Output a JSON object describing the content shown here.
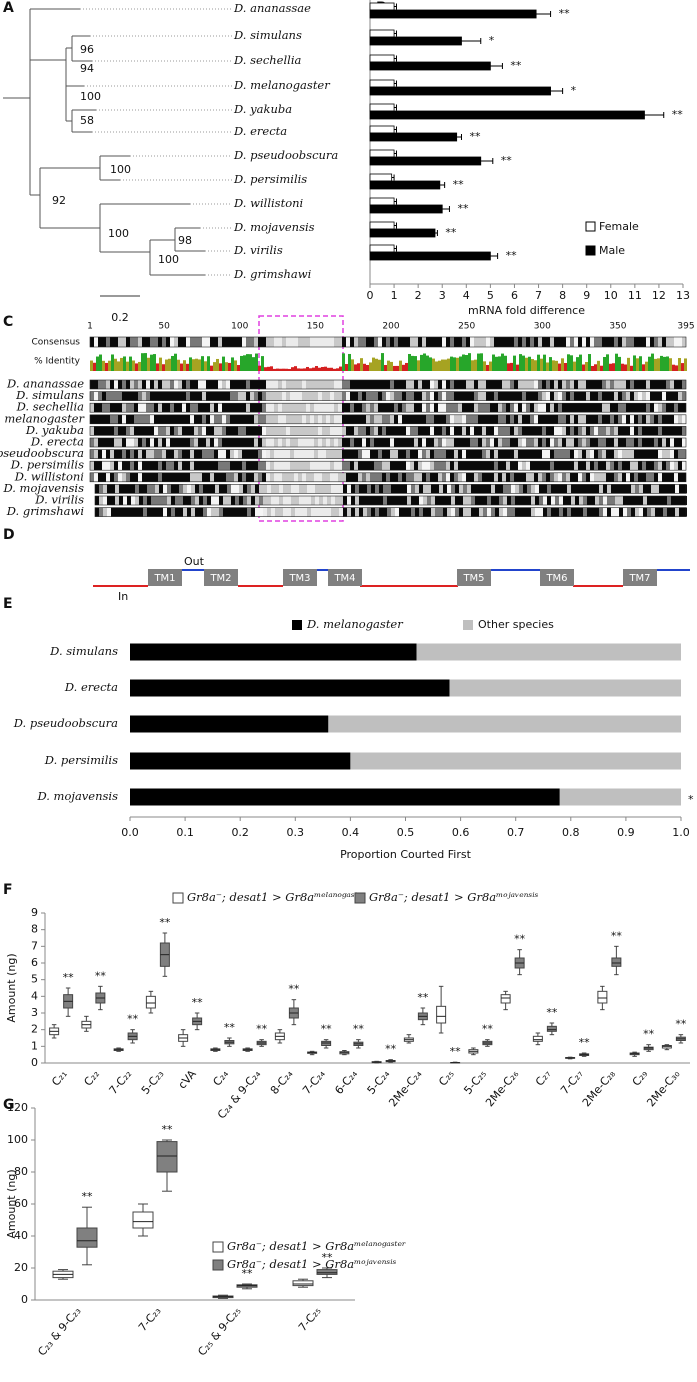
{
  "tree": {
    "panel": "A",
    "species": [
      "D. ananassae",
      "D. simulans",
      "D. sechellia",
      "D. melanogaster",
      "D. yakuba",
      "D. erecta",
      "D. pseudoobscura",
      "D. persimilis",
      "D. willistoni",
      "D. mojavensis",
      "D. virilis",
      "D. grimshawi"
    ],
    "bootstrap": [
      96,
      94,
      100,
      58,
      100,
      92,
      100,
      98,
      100
    ],
    "scale": 0.2
  },
  "alignment": {
    "panel": "C",
    "positions": [
      1,
      50,
      100,
      150,
      200,
      250,
      300,
      350,
      395
    ],
    "row_labels": [
      "Consensus",
      "% Identity"
    ],
    "species": [
      "D. ananassae",
      "D. simulans",
      "D. sechellia",
      "D. melanogaster",
      "D. yakuba",
      "D. erecta",
      "D. pseudoobscura",
      "D. persimilis",
      "D. willistoni",
      "D. mojavensis",
      "D. virilis",
      "D. grimshawi"
    ]
  },
  "topology": {
    "panel": "D",
    "domains": [
      "TM1",
      "TM2",
      "TM3",
      "TM4",
      "TM5",
      "TM6",
      "TM7"
    ],
    "outside": "Out",
    "inside": "In"
  },
  "chart_data": [
    {
      "type": "bar",
      "panel": "B",
      "orientation": "horizontal",
      "series": [
        {
          "name": "Female",
          "color": "#ffffff",
          "values": [
            1,
            1,
            1,
            1,
            1,
            1,
            1,
            0.9,
            1,
            1,
            1
          ],
          "errors": [
            0.1,
            0.1,
            0.1,
            0.1,
            0.1,
            0.1,
            0.1,
            0.1,
            0.1,
            0.1,
            0.1
          ]
        },
        {
          "name": "Male",
          "color": "#000000",
          "values": [
            6.9,
            3.8,
            5.0,
            7.5,
            11.4,
            3.6,
            4.6,
            2.9,
            3.0,
            2.7,
            5.0
          ],
          "errors": [
            0.6,
            0.8,
            0.5,
            0.5,
            0.8,
            0.2,
            0.5,
            0.2,
            0.3,
            0.1,
            0.3
          ]
        }
      ],
      "annotations": [
        "**",
        "*",
        "**",
        "*",
        "**",
        "**",
        "**",
        "**",
        "**",
        "**",
        "**"
      ],
      "xlim": [
        0,
        13
      ],
      "xticks": [
        0,
        1,
        2,
        3,
        4,
        5,
        6,
        7,
        8,
        9,
        10,
        11,
        12,
        13
      ],
      "xlabel": "mRNA fold difference"
    },
    {
      "type": "bar",
      "panel": "E",
      "orientation": "horizontal",
      "stacked": true,
      "categories": [
        "D. simulans",
        "D. erecta",
        "D. pseudoobscura",
        "D. persimilis",
        "D. mojavensis"
      ],
      "series": [
        {
          "name": "D. melanogaster",
          "color": "#000000",
          "values": [
            0.52,
            0.58,
            0.36,
            0.4,
            0.78
          ]
        },
        {
          "name": "Other species",
          "color": "#bfbfbf",
          "values": [
            0.48,
            0.42,
            0.64,
            0.6,
            0.22
          ]
        }
      ],
      "annotations": [
        null,
        null,
        null,
        null,
        "*"
      ],
      "xlim": [
        0,
        1
      ],
      "xticks": [
        {
          "value": 0,
          "label": "0.0"
        },
        0.1,
        0.2,
        0.3,
        0.4,
        0.5,
        0.6,
        0.7,
        0.8,
        0.9,
        {
          "value": 1,
          "label": "1.0"
        }
      ],
      "xlabel": "Proportion Courted First"
    },
    {
      "type": "box",
      "panel": "F",
      "categories": [
        "C₂₁",
        "C₂₂",
        "7-C₂₂",
        "5-C₂₃",
        "cVA",
        "C₂₄",
        "C₂₄ & 9-C₂₄",
        "8-C₂₄",
        "7-C₂₄",
        "6-C₂₄",
        "5-C₂₄",
        "2Me-C₂₄",
        "C₂₅",
        "5-C₂₅",
        "2Me-C₂₆",
        "C₂₇",
        "7-C₂₇",
        "2Me-C₂₈",
        "C₂₉",
        "2Me-C₃₀"
      ],
      "series": [
        {
          "name": "Gr8a⁻; desat1 > Gr8aᵐᵉˡᵃⁿᵒᵍᵃˢᵗᵉʳ",
          "color": "#ffffff",
          "min": [
            1.5,
            1.9,
            0.7,
            3.0,
            1.0,
            0.7,
            0.7,
            1.2,
            0.5,
            0.5,
            0.0,
            1.2,
            1.8,
            0.5,
            3.2,
            1.1,
            0.25,
            3.2,
            0.4,
            0.8
          ],
          "q1": [
            1.7,
            2.1,
            0.75,
            3.3,
            1.3,
            0.75,
            0.75,
            1.4,
            0.58,
            0.55,
            0.02,
            1.3,
            2.4,
            0.6,
            3.6,
            1.3,
            0.28,
            3.6,
            0.5,
            0.9
          ],
          "median": [
            1.9,
            2.3,
            0.8,
            3.6,
            1.5,
            0.8,
            0.8,
            1.6,
            0.62,
            0.62,
            0.05,
            1.4,
            2.8,
            0.7,
            3.9,
            1.4,
            0.3,
            3.9,
            0.55,
            1.0
          ],
          "q3": [
            2.1,
            2.5,
            0.85,
            4.0,
            1.7,
            0.85,
            0.85,
            1.8,
            0.66,
            0.68,
            0.08,
            1.5,
            3.4,
            0.8,
            4.1,
            1.6,
            0.33,
            4.3,
            0.6,
            1.05
          ],
          "max": [
            2.3,
            2.8,
            0.9,
            4.3,
            2.0,
            0.9,
            0.9,
            2.0,
            0.7,
            0.75,
            0.1,
            1.7,
            4.6,
            0.9,
            4.3,
            1.8,
            0.35,
            4.6,
            0.65,
            1.1
          ]
        },
        {
          "name": "Gr8a⁻; desat1 > Gr8aᵐᵒʲᵃᵛᵉⁿˢⁱˢ",
          "color": "#808080",
          "min": [
            2.8,
            3.2,
            1.2,
            5.2,
            2.0,
            1.0,
            1.0,
            2.3,
            0.9,
            0.9,
            0.05,
            2.3,
            0,
            1.0,
            5.3,
            1.7,
            0.4,
            5.3,
            0.7,
            1.2
          ],
          "q1": [
            3.3,
            3.6,
            1.4,
            5.8,
            2.3,
            1.15,
            1.1,
            2.7,
            1.05,
            1.05,
            0.08,
            2.6,
            0,
            1.1,
            5.7,
            1.9,
            0.45,
            5.8,
            0.8,
            1.35
          ],
          "median": [
            3.7,
            3.9,
            1.6,
            6.5,
            2.5,
            1.25,
            1.2,
            3.0,
            1.2,
            1.15,
            0.12,
            2.8,
            0.02,
            1.2,
            6.0,
            2.0,
            0.5,
            6.0,
            0.9,
            1.45
          ],
          "q3": [
            4.1,
            4.2,
            1.8,
            7.2,
            2.7,
            1.35,
            1.3,
            3.3,
            1.3,
            1.25,
            0.15,
            3.0,
            0.03,
            1.3,
            6.3,
            2.2,
            0.55,
            6.3,
            0.95,
            1.55
          ],
          "max": [
            4.5,
            4.6,
            2.0,
            7.8,
            3.0,
            1.5,
            1.4,
            3.8,
            1.4,
            1.4,
            0.2,
            3.3,
            0.05,
            1.4,
            6.8,
            2.4,
            0.6,
            7.0,
            1.1,
            1.7
          ]
        }
      ],
      "annotations": [
        "**",
        "**",
        "**",
        "**",
        "**",
        "**",
        "**",
        "**",
        "**",
        "**",
        "**",
        "**",
        "**",
        "**",
        "**",
        "**",
        "**",
        "**",
        "**",
        "**"
      ],
      "ylim": [
        0,
        9
      ],
      "yticks": [
        0,
        1,
        2,
        3,
        4,
        5,
        6,
        7,
        8,
        9
      ],
      "ylabel": "Amount (ng)"
    },
    {
      "type": "box",
      "panel": "G",
      "categories": [
        "C₂₃ & 9-C₂₃",
        "7-C₂₃",
        "C₂₅ & 9-C₂₅",
        "7-C₂₅"
      ],
      "series": [
        {
          "name": "Gr8a⁻; desat1 > Gr8aᵐᵉˡᵃⁿᵒᵍᵃˢᵗᵉʳ",
          "color": "#ffffff",
          "min": [
            13,
            40,
            1,
            8
          ],
          "q1": [
            14,
            45,
            1.5,
            9
          ],
          "median": [
            16,
            49,
            2,
            10
          ],
          "q3": [
            18,
            55,
            2.5,
            12
          ],
          "max": [
            19,
            60,
            3,
            13
          ]
        },
        {
          "name": "Gr8a⁻; desat1 > Gr8aᵐᵒʲᵃᵛᵉⁿˢⁱˢ",
          "color": "#808080",
          "min": [
            22,
            68,
            7,
            14
          ],
          "q1": [
            33,
            80,
            8,
            16
          ],
          "median": [
            37,
            90,
            9,
            17
          ],
          "q3": [
            45,
            99,
            9.5,
            19
          ],
          "max": [
            58,
            100,
            10,
            20
          ]
        }
      ],
      "annotations": [
        "**",
        "**",
        "**",
        "**"
      ],
      "ylim": [
        0,
        120
      ],
      "yticks": [
        0,
        20,
        40,
        60,
        80,
        100,
        120
      ],
      "ylabel": "Amount (ng)"
    }
  ]
}
